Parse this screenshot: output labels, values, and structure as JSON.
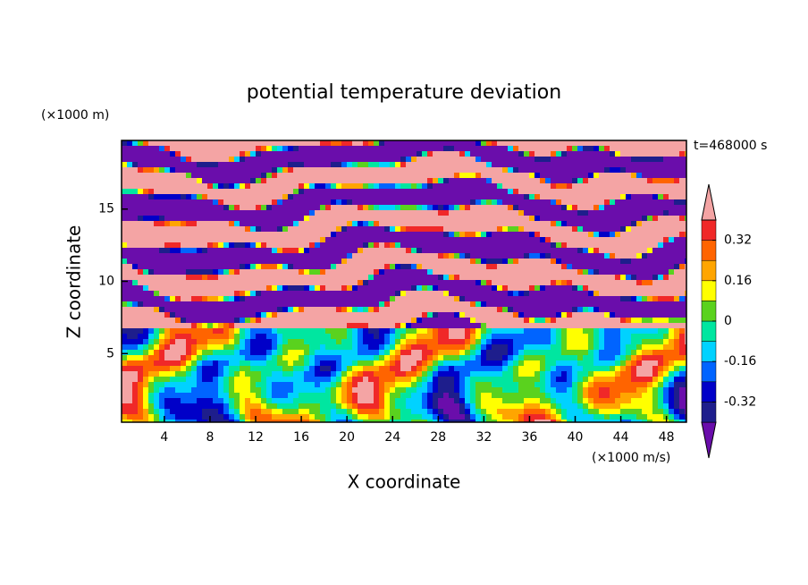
{
  "chart_data": {
    "type": "contour",
    "title": "potential temperature deviation",
    "x_label": "X coordinate",
    "y_label": "Z coordinate",
    "x_unit": "(×1000 m/s)",
    "y_unit": "(×1000 m)",
    "time_label": "t=468000 s",
    "xlim": [
      0.25,
      49.75
    ],
    "ylim": [
      0.25,
      19.75
    ],
    "xticks": [
      4,
      8,
      12,
      16,
      20,
      24,
      28,
      32,
      36,
      40,
      44,
      48
    ],
    "yticks": [
      5,
      10,
      15
    ],
    "colorbar": {
      "levels": [
        -0.4,
        -0.32,
        -0.24,
        -0.16,
        -0.08,
        0,
        0.08,
        0.16,
        0.24,
        0.32,
        0.4
      ],
      "ticks": [
        -0.32,
        -0.16,
        0,
        0.16,
        0.32
      ],
      "colors": [
        "#6a0dab",
        "#1e1e8c",
        "#0000c8",
        "#0064ff",
        "#00d2ff",
        "#00e6a0",
        "#5ad21e",
        "#ffff00",
        "#ffa500",
        "#ff6400",
        "#f02828",
        "#f4a4a4"
      ]
    }
  }
}
